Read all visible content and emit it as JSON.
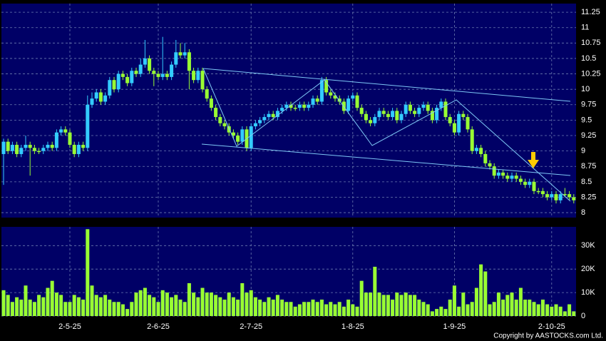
{
  "chart_data": {
    "type": "candlestick",
    "categories": [
      null,
      null,
      null,
      null,
      null,
      null,
      null,
      null,
      null,
      null,
      null,
      null,
      null,
      null,
      null,
      "2-5-25",
      null,
      null,
      null,
      null,
      null,
      null,
      null,
      null,
      null,
      null,
      null,
      null,
      null,
      null,
      null,
      null,
      null,
      null,
      null,
      "2-6-25",
      null,
      null,
      null,
      null,
      null,
      null,
      null,
      null,
      null,
      null,
      null,
      null,
      null,
      null,
      null,
      null,
      null,
      null,
      null,
      null,
      "2-7-25",
      null,
      null,
      null,
      null,
      null,
      null,
      null,
      null,
      null,
      null,
      null,
      null,
      null,
      null,
      null,
      null,
      null,
      null,
      null,
      null,
      null,
      null,
      "1-8-25",
      null,
      null,
      null,
      null,
      null,
      null,
      null,
      null,
      null,
      null,
      null,
      null,
      null,
      null,
      null,
      null,
      null,
      null,
      null,
      null,
      null,
      null,
      "1-9-25",
      null,
      null,
      null,
      null,
      null,
      null,
      null,
      null,
      null,
      null,
      null,
      null,
      null,
      null,
      null,
      null,
      null,
      null,
      null,
      null,
      null,
      "2-10-25",
      null,
      null,
      null,
      null,
      null
    ],
    "open": [
      8.95,
      9.15,
      9.0,
      9.1,
      8.95,
      9.05,
      9.1,
      9.05,
      9.0,
      9.0,
      9.05,
      9.1,
      9.05,
      9.3,
      9.35,
      9.3,
      9.1,
      8.95,
      9.1,
      9.05,
      9.75,
      9.85,
      9.95,
      9.8,
      9.9,
      10.15,
      10.0,
      10.25,
      10.2,
      10.1,
      10.3,
      10.25,
      10.4,
      10.5,
      10.3,
      10.25,
      10.2,
      10.25,
      10.2,
      10.4,
      10.6,
      10.55,
      10.6,
      10.3,
      10.15,
      10.3,
      10.0,
      9.85,
      9.7,
      9.55,
      9.45,
      9.4,
      9.3,
      9.25,
      9.15,
      9.35,
      9.05,
      9.4,
      9.45,
      9.5,
      9.55,
      9.6,
      9.55,
      9.65,
      9.7,
      9.75,
      9.7,
      9.7,
      9.75,
      9.7,
      9.75,
      9.85,
      9.8,
      10.15,
      9.95,
      9.9,
      9.85,
      9.8,
      9.65,
      9.85,
      9.9,
      9.7,
      9.6,
      9.5,
      9.45,
      9.55,
      9.65,
      9.6,
      9.55,
      9.65,
      9.5,
      9.6,
      9.75,
      9.65,
      9.6,
      9.7,
      9.75,
      9.65,
      9.5,
      9.7,
      9.8,
      9.55,
      9.45,
      9.3,
      9.6,
      9.55,
      9.35,
      9.0,
      9.05,
      8.95,
      8.8,
      8.75,
      8.6,
      8.65,
      8.6,
      8.55,
      8.6,
      8.55,
      8.5,
      8.45,
      8.5,
      8.35,
      8.35,
      8.3,
      8.25,
      8.3,
      8.2,
      8.3,
      8.3,
      8.25
    ],
    "high": [
      9.2,
      9.2,
      9.15,
      9.15,
      9.1,
      9.25,
      9.15,
      9.1,
      9.05,
      9.1,
      9.15,
      9.15,
      9.35,
      9.4,
      9.4,
      9.35,
      9.15,
      9.15,
      9.15,
      9.9,
      9.95,
      10.0,
      10.0,
      9.95,
      10.2,
      10.2,
      10.3,
      10.3,
      10.25,
      10.35,
      10.35,
      10.5,
      10.8,
      10.55,
      10.35,
      10.3,
      10.85,
      10.3,
      10.45,
      10.8,
      10.75,
      10.75,
      10.65,
      10.35,
      10.35,
      10.35,
      10.05,
      9.9,
      9.75,
      9.6,
      9.5,
      9.45,
      9.35,
      9.3,
      9.4,
      9.4,
      9.45,
      9.5,
      9.55,
      9.6,
      9.65,
      9.65,
      9.7,
      9.75,
      9.8,
      9.8,
      9.75,
      9.8,
      9.8,
      9.8,
      9.9,
      9.9,
      10.2,
      10.2,
      10.0,
      9.95,
      9.9,
      9.85,
      9.9,
      9.95,
      9.95,
      9.75,
      9.65,
      9.55,
      9.6,
      9.7,
      9.7,
      9.65,
      9.7,
      9.7,
      9.65,
      9.8,
      9.8,
      9.7,
      9.75,
      9.8,
      9.8,
      9.7,
      9.75,
      9.85,
      9.85,
      9.6,
      9.5,
      9.65,
      9.65,
      9.6,
      9.4,
      9.1,
      9.1,
      9.0,
      8.85,
      8.8,
      8.7,
      8.7,
      8.65,
      8.65,
      8.65,
      8.6,
      8.55,
      8.55,
      8.55,
      8.4,
      8.4,
      8.35,
      8.35,
      8.35,
      8.35,
      8.4,
      8.35,
      8.3
    ],
    "low": [
      8.45,
      8.95,
      8.95,
      8.9,
      8.9,
      9.0,
      8.6,
      8.95,
      8.95,
      8.95,
      9.0,
      9.0,
      9.0,
      9.25,
      9.25,
      9.05,
      8.9,
      8.9,
      9.0,
      9.0,
      9.7,
      9.8,
      9.75,
      9.75,
      9.85,
      9.95,
      9.95,
      10.15,
      10.05,
      10.05,
      10.2,
      10.2,
      10.35,
      10.25,
      10.05,
      10.15,
      10.15,
      10.15,
      10.15,
      10.35,
      10.5,
      10.5,
      10.0,
      10.1,
      10.1,
      9.95,
      9.8,
      9.65,
      9.5,
      9.4,
      9.35,
      9.25,
      9.2,
      9.1,
      9.1,
      9.0,
      9.0,
      9.35,
      9.4,
      9.45,
      9.5,
      9.5,
      9.5,
      9.6,
      9.65,
      9.65,
      9.65,
      9.65,
      9.65,
      9.65,
      9.7,
      9.75,
      9.75,
      9.9,
      9.85,
      9.8,
      9.75,
      9.6,
      9.6,
      9.8,
      9.65,
      9.55,
      9.45,
      9.4,
      9.4,
      9.5,
      9.55,
      9.5,
      9.5,
      9.45,
      9.45,
      9.55,
      9.6,
      9.55,
      9.55,
      9.65,
      9.6,
      9.45,
      9.45,
      9.65,
      9.5,
      9.4,
      9.25,
      9.25,
      9.5,
      9.3,
      8.95,
      8.95,
      8.9,
      8.75,
      8.7,
      8.55,
      8.55,
      8.55,
      8.5,
      8.5,
      8.5,
      8.45,
      8.4,
      8.4,
      8.3,
      8.3,
      8.25,
      8.2,
      8.2,
      8.15,
      8.15,
      8.25,
      8.2,
      8.15
    ],
    "close": [
      9.15,
      9.0,
      9.1,
      8.95,
      9.05,
      9.1,
      9.05,
      9.0,
      9.0,
      9.05,
      9.1,
      9.05,
      9.3,
      9.35,
      9.3,
      9.1,
      8.95,
      9.1,
      9.05,
      9.75,
      9.85,
      9.95,
      9.8,
      9.9,
      10.15,
      10.0,
      10.25,
      10.2,
      10.1,
      10.3,
      10.25,
      10.4,
      10.5,
      10.3,
      10.25,
      10.2,
      10.25,
      10.2,
      10.4,
      10.6,
      10.55,
      10.6,
      10.3,
      10.15,
      10.3,
      10.0,
      9.85,
      9.7,
      9.55,
      9.45,
      9.4,
      9.3,
      9.25,
      9.15,
      9.35,
      9.05,
      9.4,
      9.45,
      9.5,
      9.55,
      9.6,
      9.55,
      9.65,
      9.7,
      9.75,
      9.7,
      9.7,
      9.75,
      9.7,
      9.75,
      9.85,
      9.8,
      10.15,
      9.95,
      9.9,
      9.85,
      9.8,
      9.65,
      9.85,
      9.9,
      9.7,
      9.6,
      9.5,
      9.45,
      9.55,
      9.65,
      9.6,
      9.55,
      9.65,
      9.5,
      9.6,
      9.75,
      9.65,
      9.6,
      9.7,
      9.75,
      9.65,
      9.5,
      9.7,
      9.8,
      9.55,
      9.45,
      9.3,
      9.6,
      9.55,
      9.35,
      9.0,
      9.05,
      8.95,
      8.8,
      8.75,
      8.6,
      8.65,
      8.6,
      8.55,
      8.6,
      8.55,
      8.5,
      8.45,
      8.5,
      8.35,
      8.35,
      8.3,
      8.25,
      8.3,
      8.2,
      8.3,
      8.3,
      8.25,
      8.2
    ],
    "up_color": "#33ccff",
    "down_color": "#99ff33",
    "ylim": [
      7.92,
      11.39
    ],
    "yticks": [
      8,
      8.25,
      8.5,
      8.75,
      9,
      9.25,
      9.5,
      9.75,
      10,
      10.25,
      10.5,
      10.75,
      11,
      11.25
    ],
    "grid": true,
    "volume": {
      "type": "bar",
      "color": "#99ff33",
      "values": [
        11000,
        9000,
        6000,
        8000,
        7000,
        13000,
        7000,
        6000,
        9000,
        8000,
        12000,
        15000,
        10000,
        9000,
        6000,
        6000,
        9000,
        8000,
        7000,
        37000,
        13000,
        9000,
        8000,
        9000,
        7000,
        6000,
        6000,
        5000,
        3000,
        6000,
        10000,
        11000,
        12000,
        9000,
        8000,
        6000,
        11000,
        10000,
        8000,
        9000,
        7000,
        6000,
        14000,
        10000,
        8000,
        12000,
        10000,
        10000,
        9000,
        8000,
        7000,
        10000,
        8000,
        7000,
        14000,
        10000,
        11000,
        8000,
        7000,
        6000,
        8000,
        7000,
        9000,
        7000,
        6000,
        6000,
        4000,
        5000,
        6000,
        6000,
        7000,
        6000,
        7000,
        5000,
        6000,
        5000,
        6000,
        4000,
        7000,
        5000,
        4000,
        15000,
        10000,
        10000,
        21000,
        10000,
        9000,
        9000,
        7000,
        10000,
        9000,
        10000,
        9000,
        9000,
        7000,
        6000,
        5000,
        2000,
        3000,
        4000,
        3000,
        7000,
        13000,
        4000,
        10000,
        5000,
        6000,
        12000,
        22000,
        19000,
        5000,
        6000,
        10000,
        7000,
        9000,
        10000,
        7000,
        12000,
        7000,
        7000,
        6000,
        5000,
        7000,
        5000,
        4000,
        5000,
        4000,
        2000,
        5000,
        2000
      ],
      "ylim": [
        0,
        38000
      ],
      "yticks": [
        0,
        {
          "value": 10000,
          "label": "10K"
        },
        {
          "value": 20000,
          "label": "20K"
        },
        {
          "value": 30000,
          "label": "30K"
        }
      ]
    },
    "credit": "Copyright by AASTOCKS.com Ltd."
  }
}
